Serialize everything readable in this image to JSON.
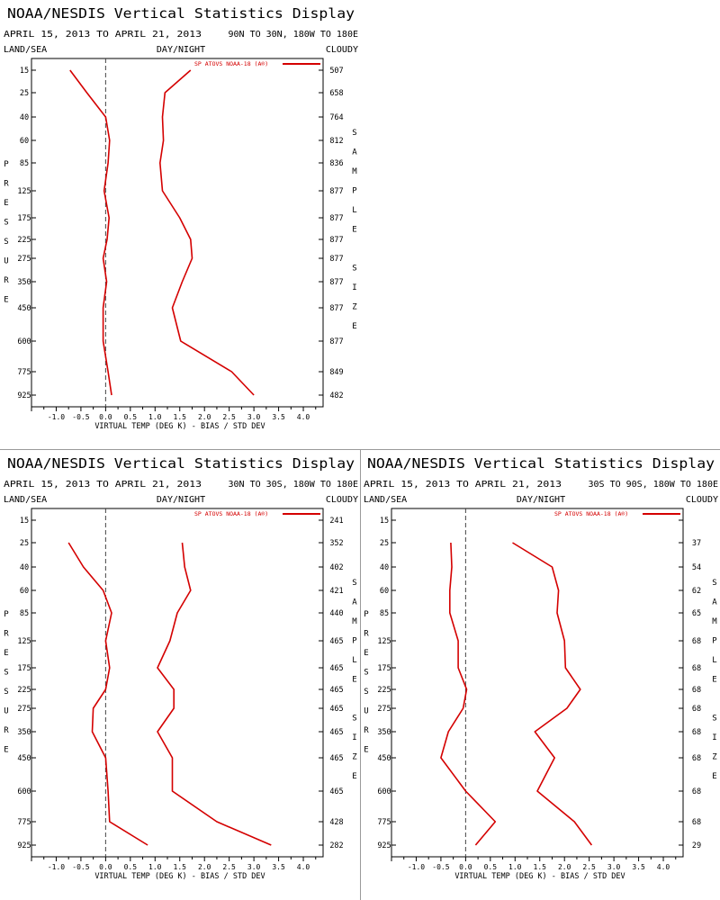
{
  "chart_data": [
    {
      "type": "line",
      "title": "NOAA/NESDIS Vertical Statistics Display",
      "date_range": "APRIL 15, 2013 TO APRIL 21, 2013",
      "region": "90N TO 30N, 180W TO 180E",
      "left_header": "LAND/SEA",
      "center_header": "DAY/NIGHT",
      "right_header": "CLOUDY",
      "ylabel": "PRESSURE",
      "y2label": "SAMPLE SIZE",
      "xlabel": "VIRTUAL TEMP (DEG K) - BIAS / STD DEV",
      "xlim": [
        -1.5,
        4.4
      ],
      "x_ticks": [
        "-1.0",
        "-0.5",
        "0.0",
        "0.5",
        "1.0",
        "1.5",
        "2.0",
        "2.5",
        "3.0",
        "3.5",
        "4.0"
      ],
      "legend": "SP ATOVS NOAA-18 (A®)",
      "legend_position": "top-right",
      "pressure_levels": [
        "15",
        "25",
        "40",
        "60",
        "85",
        "125",
        "175",
        "225",
        "275",
        "350",
        "450",
        "600",
        "775",
        "925"
      ],
      "sample_size": [
        "507",
        "658",
        "764",
        "812",
        "836",
        "877",
        "877",
        "877",
        "877",
        "877",
        "877",
        "877",
        "849",
        "482"
      ],
      "series": [
        {
          "metric": "bias",
          "values": [
            -0.72,
            -0.38,
            0.0,
            0.08,
            0.05,
            -0.03,
            0.07,
            0.03,
            -0.05,
            0.02,
            -0.05,
            -0.05,
            0.05,
            0.12
          ]
        },
        {
          "metric": "std_dev",
          "values": [
            1.72,
            1.2,
            1.15,
            1.17,
            1.1,
            1.15,
            1.5,
            1.72,
            1.75,
            1.55,
            1.35,
            1.52,
            2.55,
            3.0
          ]
        }
      ]
    },
    {
      "type": "line",
      "title": "NOAA/NESDIS Vertical Statistics Display",
      "date_range": "APRIL 15, 2013 TO APRIL 21, 2013",
      "region": "30N TO 30S, 180W TO 180E",
      "left_header": "LAND/SEA",
      "center_header": "DAY/NIGHT",
      "right_header": "CLOUDY",
      "ylabel": "PRESSURE",
      "y2label": "SAMPLE SIZE",
      "xlabel": "VIRTUAL TEMP (DEG K) - BIAS / STD DEV",
      "xlim": [
        -1.5,
        4.4
      ],
      "x_ticks": [
        "-1.0",
        "-0.5",
        "0.0",
        "0.5",
        "1.0",
        "1.5",
        "2.0",
        "2.5",
        "3.0",
        "3.5",
        "4.0"
      ],
      "legend": "SP ATOVS NOAA-18 (A®)",
      "legend_position": "top-right",
      "pressure_levels": [
        "15",
        "25",
        "40",
        "60",
        "85",
        "125",
        "175",
        "225",
        "275",
        "350",
        "450",
        "600",
        "775",
        "925"
      ],
      "sample_size": [
        "241",
        "352",
        "402",
        "421",
        "440",
        "465",
        "465",
        "465",
        "465",
        "465",
        "465",
        "465",
        "428",
        "282"
      ],
      "series": [
        {
          "metric": "bias",
          "values": [
            null,
            -0.75,
            -0.45,
            -0.05,
            0.12,
            0.0,
            0.08,
            0.0,
            -0.25,
            -0.27,
            0.0,
            0.05,
            0.08,
            0.85
          ]
        },
        {
          "metric": "std_dev",
          "values": [
            null,
            1.55,
            1.6,
            1.72,
            1.45,
            1.3,
            1.05,
            1.38,
            1.38,
            1.05,
            1.35,
            1.35,
            2.25,
            3.35
          ]
        }
      ]
    },
    {
      "type": "line",
      "title": "NOAA/NESDIS Vertical Statistics Display",
      "date_range": "APRIL 15, 2013 TO APRIL 21, 2013",
      "region": "30S TO 90S, 180W TO 180E",
      "left_header": "LAND/SEA",
      "center_header": "DAY/NIGHT",
      "right_header": "CLOUDY",
      "ylabel": "PRESSURE",
      "y2label": "SAMPLE SIZE",
      "xlabel": "VIRTUAL TEMP (DEG K) - BIAS / STD DEV",
      "xlim": [
        -1.5,
        4.4
      ],
      "x_ticks": [
        "-1.0",
        "-0.5",
        "0.0",
        "0.5",
        "1.0",
        "1.5",
        "2.0",
        "2.5",
        "3.0",
        "3.5",
        "4.0"
      ],
      "legend": "SP ATOVS NOAA-18 (A®)",
      "legend_position": "top-right",
      "pressure_levels": [
        "15",
        "25",
        "40",
        "60",
        "85",
        "125",
        "175",
        "225",
        "275",
        "350",
        "450",
        "600",
        "775",
        "925"
      ],
      "sample_size": [
        "",
        "37",
        "54",
        "62",
        "65",
        "68",
        "68",
        "68",
        "68",
        "68",
        "68",
        "68",
        "68",
        "29"
      ],
      "series": [
        {
          "metric": "bias",
          "values": [
            null,
            -0.3,
            -0.28,
            -0.32,
            -0.32,
            -0.15,
            -0.15,
            0.02,
            -0.05,
            -0.35,
            -0.5,
            0.0,
            0.6,
            0.2
          ]
        },
        {
          "metric": "std_dev",
          "values": [
            null,
            0.95,
            1.75,
            1.88,
            1.85,
            2.0,
            2.02,
            2.32,
            2.05,
            1.4,
            1.8,
            1.45,
            2.2,
            2.55
          ]
        }
      ]
    }
  ]
}
